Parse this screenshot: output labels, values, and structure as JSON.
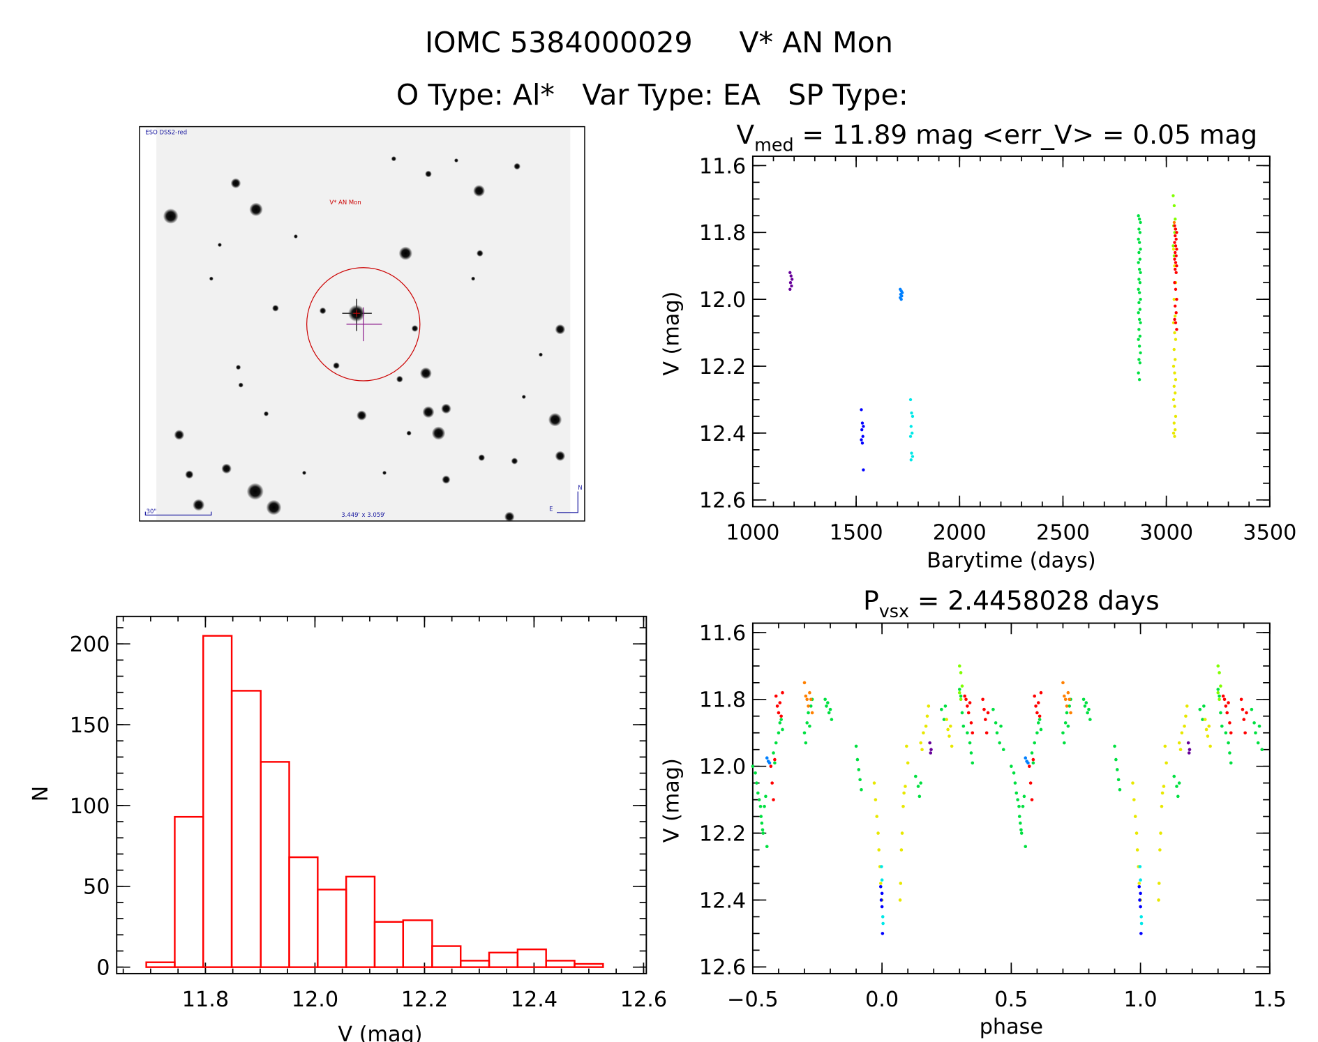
{
  "header": {
    "line1_id": "IOMC 5384000029",
    "line1_name": "V* AN Mon",
    "line2": "O Type: Al*   Var Type: EA   SP Type:"
  },
  "sky_image": {
    "survey": "ESO DSS2-red",
    "target_label": "V* AN Mon",
    "scale_bar": "30\"",
    "field_size": "3.449' x 3.059'",
    "north": "N",
    "east": "E",
    "colors": {
      "target": "#cc0000",
      "annotation": "#1a1aa0",
      "crosshair": "#8a1a8a"
    }
  },
  "chart_data": [
    {
      "type": "bar",
      "id": "histogram",
      "xlabel": "V (mag)",
      "ylabel": "N",
      "xlim": [
        11.638,
        12.605
      ],
      "ylim": [
        -4,
        217
      ],
      "xticks": [
        "11.8",
        "12.0",
        "12.2",
        "12.4",
        "12.6"
      ],
      "yticks": [
        "0",
        "50",
        "100",
        "150",
        "200"
      ],
      "bin_edges": [
        11.692,
        11.744,
        11.796,
        11.848,
        11.901,
        11.953,
        12.005,
        12.057,
        12.109,
        12.161,
        12.214,
        12.266,
        12.318,
        12.37,
        12.422,
        12.474,
        12.526
      ],
      "values": [
        3,
        93,
        205,
        171,
        127,
        68,
        48,
        56,
        28,
        29,
        13,
        4,
        9,
        11,
        4,
        2
      ],
      "color": "#ff0000"
    },
    {
      "type": "scatter",
      "id": "lightcurve",
      "title_main": "V",
      "title_sub": "med",
      "title_rest": " = 11.89 mag <err_V> = 0.05 mag",
      "xlabel": "Barytime (days)",
      "ylabel": "V (mag)",
      "xlim": [
        1000,
        3500
      ],
      "ylim": [
        11.572,
        12.62
      ],
      "y_reversed": true,
      "xticks": [
        "1000",
        "1500",
        "2000",
        "2500",
        "3000",
        "3500"
      ],
      "yticks": [
        "11.6",
        "11.8",
        "12.0",
        "12.2",
        "12.4",
        "12.6"
      ],
      "series": [
        {
          "color": "#660099",
          "x": 1185,
          "y": [
            11.92,
            11.93,
            11.94,
            11.95,
            11.96,
            11.97
          ]
        },
        {
          "color": "#0000ff",
          "x": 1530,
          "y": [
            12.33,
            12.37,
            12.38,
            12.39,
            12.41,
            12.42,
            12.43,
            12.51
          ]
        },
        {
          "color": "#0080ff",
          "x": 1718,
          "y": [
            11.97,
            11.975,
            11.98,
            11.985,
            11.99,
            11.995,
            12.0
          ]
        },
        {
          "color": "#00e8e8",
          "x": 1768,
          "y": [
            12.3,
            12.34,
            12.35,
            12.38,
            12.4,
            12.41,
            12.46,
            12.47,
            12.48
          ]
        },
        {
          "color": "#00e040",
          "x": 2870,
          "y": [
            11.75,
            11.76,
            11.77,
            11.79,
            11.8,
            11.82,
            11.83,
            11.85,
            11.86,
            11.88,
            11.89,
            11.91,
            11.92,
            11.94,
            11.95,
            11.97,
            11.98,
            12.0,
            12.01,
            12.03,
            12.04,
            12.06,
            12.07,
            12.09,
            12.11,
            12.12,
            12.14,
            12.16,
            12.18,
            12.19,
            12.22,
            12.24
          ]
        },
        {
          "color": "#e8e800",
          "x": 3040,
          "y": [
            11.85,
            11.9,
            11.95,
            12.0,
            12.05,
            12.07,
            12.1,
            12.12,
            12.15,
            12.18,
            12.2,
            12.22,
            12.24,
            12.26,
            12.28,
            12.3,
            12.32,
            12.35,
            12.37,
            12.39,
            12.4,
            12.41
          ]
        },
        {
          "color": "#80ff00",
          "x": 3038,
          "y": [
            11.69,
            11.72,
            11.76,
            11.78,
            11.8,
            11.84,
            11.87
          ]
        },
        {
          "color": "#ff8000",
          "x": 3043,
          "y": [
            11.77,
            11.79
          ]
        },
        {
          "color": "#ff0000",
          "x": 3045,
          "y": [
            11.78,
            11.79,
            11.8,
            11.81,
            11.82,
            11.83,
            11.84,
            11.85,
            11.86,
            11.87,
            11.88,
            11.89,
            11.9,
            11.91,
            11.92,
            11.95,
            11.97,
            12.0,
            12.02,
            12.04,
            12.06,
            12.07,
            12.09
          ]
        }
      ]
    },
    {
      "type": "scatter",
      "id": "phased",
      "title_main": "P",
      "title_sub": "vsx",
      "title_rest": " = 2.4458028 days",
      "xlabel": "phase",
      "ylabel": "V (mag)",
      "xlim": [
        -0.5,
        1.5
      ],
      "ylim": [
        11.572,
        12.62
      ],
      "y_reversed": true,
      "xticks": [
        "−0.5",
        "0.0",
        "0.5",
        "1.0",
        "1.5"
      ],
      "yticks": [
        "11.6",
        "11.8",
        "12.0",
        "12.2",
        "12.4",
        "12.6"
      ],
      "repeat_period": 1,
      "series": [
        {
          "color": "#00e040",
          "points": [
            [
              -0.5,
              12.0
            ],
            [
              -0.49,
              12.02
            ],
            [
              -0.485,
              12.05
            ],
            [
              -0.48,
              12.08
            ],
            [
              -0.475,
              12.1
            ],
            [
              -0.47,
              12.12
            ],
            [
              -0.468,
              12.15
            ],
            [
              -0.465,
              12.17
            ],
            [
              -0.462,
              12.19
            ],
            [
              -0.46,
              12.2
            ],
            [
              -0.455,
              12.12
            ],
            [
              -0.45,
              12.09
            ],
            [
              -0.445,
              12.24
            ],
            [
              -0.42,
              11.96
            ],
            [
              -0.415,
              11.99
            ],
            [
              -0.41,
              11.93
            ],
            [
              -0.4,
              11.9
            ],
            [
              -0.395,
              11.87
            ],
            [
              -0.39,
              11.86
            ],
            [
              -0.385,
              11.89
            ],
            [
              -0.3,
              11.9
            ],
            [
              -0.295,
              11.93
            ],
            [
              -0.29,
              11.87
            ],
            [
              -0.285,
              11.84
            ],
            [
              -0.28,
              11.88
            ],
            [
              -0.275,
              11.82
            ],
            [
              -0.27,
              11.8
            ],
            [
              -0.22,
              11.8
            ],
            [
              -0.215,
              11.82
            ],
            [
              -0.21,
              11.81
            ],
            [
              -0.205,
              11.84
            ],
            [
              -0.2,
              11.83
            ],
            [
              -0.195,
              11.86
            ],
            [
              -0.1,
              11.94
            ],
            [
              -0.095,
              11.98
            ],
            [
              -0.09,
              12.01
            ],
            [
              -0.085,
              12.04
            ],
            [
              -0.08,
              12.07
            ],
            [
              0.13,
              12.03
            ],
            [
              0.14,
              12.06
            ],
            [
              0.145,
              12.09
            ],
            [
              0.15,
              12.05
            ],
            [
              0.23,
              11.83
            ],
            [
              0.24,
              11.86
            ],
            [
              0.245,
              11.82
            ],
            [
              0.3,
              11.77
            ],
            [
              0.305,
              11.79
            ],
            [
              0.31,
              11.84
            ],
            [
              0.315,
              11.88
            ],
            [
              0.33,
              11.9
            ],
            [
              0.34,
              11.93
            ],
            [
              0.345,
              11.96
            ],
            [
              0.35,
              11.99
            ],
            [
              0.43,
              11.83
            ],
            [
              0.44,
              11.87
            ],
            [
              0.445,
              11.9
            ],
            [
              0.455,
              11.93
            ],
            [
              0.46,
              11.88
            ],
            [
              0.47,
              11.95
            ]
          ]
        },
        {
          "color": "#ff0000",
          "points": [
            [
              -0.43,
              12.0
            ],
            [
              -0.425,
              12.05
            ],
            [
              -0.42,
              12.1
            ],
            [
              -0.415,
              11.98
            ],
            [
              -0.41,
              11.79
            ],
            [
              -0.405,
              11.82
            ],
            [
              -0.4,
              11.84
            ],
            [
              -0.395,
              11.81
            ],
            [
              -0.39,
              11.85
            ],
            [
              -0.385,
              11.78
            ],
            [
              0.32,
              11.79
            ],
            [
              0.325,
              11.8
            ],
            [
              0.33,
              11.82
            ],
            [
              0.335,
              11.84
            ],
            [
              0.34,
              11.81
            ],
            [
              0.345,
              11.87
            ],
            [
              0.35,
              11.9
            ],
            [
              0.39,
              11.8
            ],
            [
              0.395,
              11.83
            ],
            [
              0.4,
              11.86
            ],
            [
              0.405,
              11.9
            ],
            [
              0.41,
              11.84
            ]
          ]
        },
        {
          "color": "#ff8000",
          "points": [
            [
              -0.3,
              11.75
            ],
            [
              -0.295,
              11.79
            ],
            [
              -0.29,
              11.8
            ],
            [
              -0.285,
              11.82
            ],
            [
              -0.28,
              11.78
            ],
            [
              -0.275,
              11.8
            ],
            [
              -0.27,
              11.84
            ]
          ]
        },
        {
          "color": "#0080ff",
          "points": [
            [
              -0.445,
              11.975
            ],
            [
              -0.44,
              11.985
            ],
            [
              -0.435,
              11.99
            ]
          ]
        },
        {
          "color": "#e8e800",
          "points": [
            [
              -0.03,
              12.05
            ],
            [
              -0.025,
              12.1
            ],
            [
              -0.02,
              12.15
            ],
            [
              -0.015,
              12.2
            ],
            [
              -0.012,
              12.25
            ],
            [
              -0.008,
              12.3
            ],
            [
              -0.005,
              12.35
            ],
            [
              0.0,
              12.4
            ],
            [
              0.07,
              12.4
            ],
            [
              0.072,
              12.35
            ],
            [
              0.075,
              12.25
            ],
            [
              0.078,
              12.2
            ],
            [
              0.082,
              12.12
            ],
            [
              0.085,
              12.08
            ],
            [
              0.09,
              12.06
            ],
            [
              0.095,
              11.94
            ],
            [
              0.1,
              11.99
            ],
            [
              0.15,
              11.93
            ],
            [
              0.155,
              11.95
            ],
            [
              0.16,
              11.9
            ],
            [
              0.17,
              11.88
            ],
            [
              0.175,
              11.85
            ],
            [
              0.18,
              11.82
            ],
            [
              0.25,
              11.86
            ],
            [
              0.255,
              11.89
            ],
            [
              0.26,
              11.91
            ],
            [
              0.265,
              11.88
            ],
            [
              0.27,
              11.94
            ]
          ]
        },
        {
          "color": "#80ff00",
          "points": [
            [
              0.3,
              11.7
            ],
            [
              0.305,
              11.72
            ],
            [
              0.31,
              11.76
            ],
            [
              0.3,
              11.78
            ],
            [
              0.305,
              11.8
            ]
          ]
        },
        {
          "color": "#660099",
          "points": [
            [
              0.185,
              11.93
            ],
            [
              0.19,
              11.95
            ],
            [
              0.188,
              11.96
            ]
          ]
        },
        {
          "color": "#0000ff",
          "points": [
            [
              -0.005,
              12.36
            ],
            [
              0.0,
              12.38
            ],
            [
              -0.003,
              12.4
            ],
            [
              0.0,
              12.42
            ],
            [
              0.002,
              12.5
            ]
          ]
        },
        {
          "color": "#00e8e8",
          "points": [
            [
              -0.002,
              12.3
            ],
            [
              0.0,
              12.34
            ],
            [
              0.003,
              12.45
            ],
            [
              0.004,
              12.47
            ]
          ]
        }
      ]
    }
  ]
}
